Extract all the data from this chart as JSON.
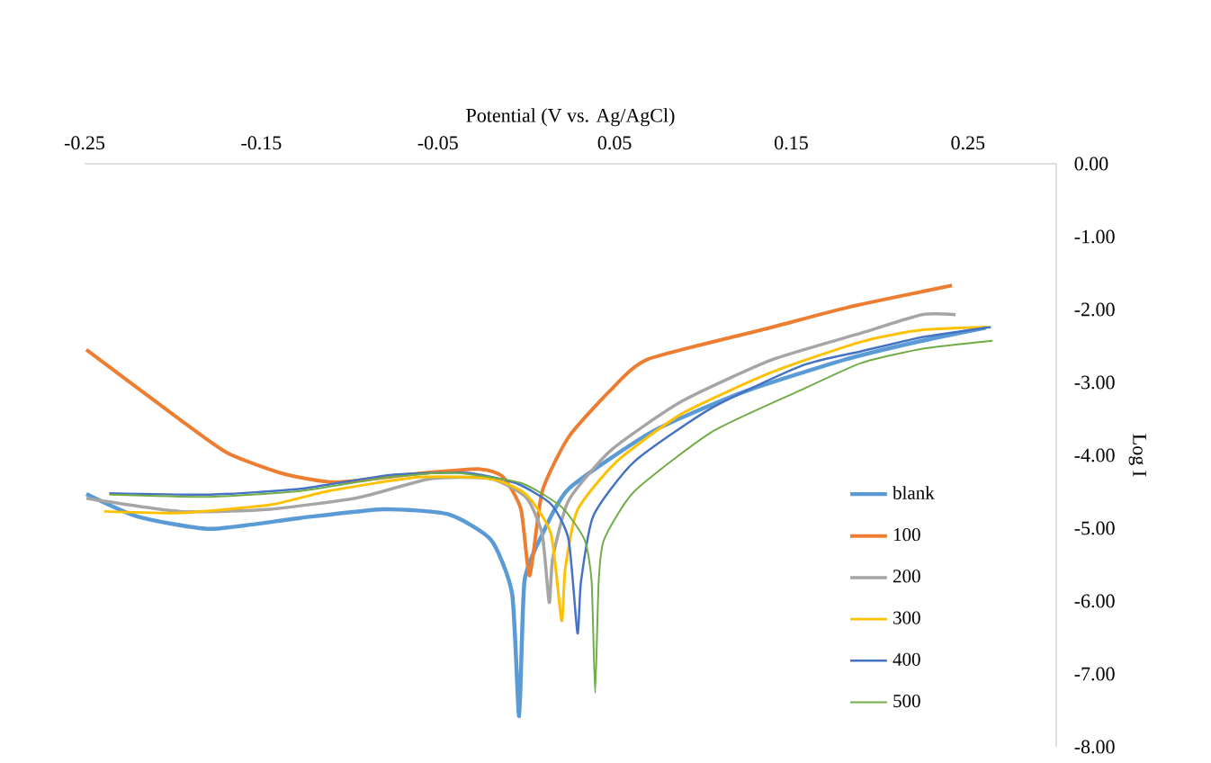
{
  "chart_data": {
    "type": "line",
    "xlabel": "Potential  (V vs. Ag/AgCl)",
    "ylabel": "Log I",
    "xlim": [
      -0.25,
      0.3
    ],
    "ylim": [
      -8,
      0
    ],
    "xticks": [
      -0.25,
      -0.15,
      -0.05,
      0.05,
      0.15,
      0.25
    ],
    "yticks": [
      {
        "value": 0,
        "label": "0.00"
      },
      {
        "value": -1,
        "label": "-1.00"
      },
      {
        "value": -2,
        "label": "-2.00"
      },
      {
        "value": -3,
        "label": "-3.00"
      },
      {
        "value": -4,
        "label": "-4.00"
      },
      {
        "value": -5,
        "label": "-5.00"
      },
      {
        "value": -6,
        "label": "-6.00"
      },
      {
        "value": -7,
        "label": "-7.00"
      },
      {
        "value": -8,
        "label": "-8.00"
      }
    ],
    "legend": "right",
    "grid": false,
    "marker": "none",
    "line_style": "solid",
    "series": [
      {
        "name": "blank",
        "color": "#5b9bd5",
        "x": [
          -0.249,
          -0.22,
          -0.179,
          -0.128,
          -0.081,
          -0.044,
          -0.02,
          -0.008,
          -0.004,
          -0.001,
          0.009,
          0.024,
          0.071,
          0.122,
          0.18,
          0.22,
          0.26
        ],
        "values": [
          -4.53,
          -4.84,
          -5.01,
          -4.86,
          -4.74,
          -4.81,
          -5.16,
          -5.9,
          -7.58,
          -5.73,
          -5.09,
          -4.46,
          -3.68,
          -3.14,
          -2.69,
          -2.45,
          -2.25
        ]
      },
      {
        "name": "100",
        "color": "#ed7d31",
        "x": [
          -0.249,
          -0.196,
          -0.169,
          -0.138,
          -0.108,
          -0.061,
          -0.026,
          -0.013,
          -0.003,
          0.002,
          0.009,
          0.024,
          0.048,
          0.069,
          0.138,
          0.182,
          0.241
        ],
        "values": [
          -2.55,
          -3.51,
          -3.97,
          -4.25,
          -4.37,
          -4.25,
          -4.19,
          -4.3,
          -4.74,
          -5.65,
          -4.5,
          -3.75,
          -3.1,
          -2.68,
          -2.25,
          -1.97,
          -1.67
        ]
      },
      {
        "name": "200",
        "color": "#a5a5a5",
        "x": [
          -0.249,
          -0.196,
          -0.145,
          -0.095,
          -0.054,
          -0.02,
          0.0,
          0.009,
          0.013,
          0.015,
          0.024,
          0.048,
          0.088,
          0.139,
          0.19,
          0.224,
          0.243
        ],
        "values": [
          -4.59,
          -4.77,
          -4.74,
          -4.58,
          -4.32,
          -4.32,
          -4.58,
          -5.08,
          -6.02,
          -5.41,
          -4.62,
          -3.93,
          -3.26,
          -2.69,
          -2.32,
          -2.07,
          -2.07
        ]
      },
      {
        "name": "300",
        "color": "#ffc000",
        "x": [
          -0.239,
          -0.196,
          -0.145,
          -0.112,
          -0.061,
          -0.02,
          0.0,
          0.014,
          0.02,
          0.022,
          0.029,
          0.051,
          0.088,
          0.139,
          0.19,
          0.224,
          0.261
        ],
        "values": [
          -4.77,
          -4.79,
          -4.68,
          -4.49,
          -4.3,
          -4.32,
          -4.54,
          -5.08,
          -6.27,
          -5.57,
          -4.75,
          -4.09,
          -3.43,
          -2.86,
          -2.44,
          -2.28,
          -2.24
        ]
      },
      {
        "name": "400",
        "color": "#4472c4",
        "x": [
          -0.236,
          -0.179,
          -0.128,
          -0.077,
          -0.034,
          -0.006,
          0.014,
          0.024,
          0.029,
          0.031,
          0.038,
          0.061,
          0.105,
          0.156,
          0.19,
          0.224,
          0.263
        ],
        "values": [
          -4.52,
          -4.54,
          -4.46,
          -4.27,
          -4.24,
          -4.38,
          -4.67,
          -5.16,
          -6.44,
          -5.73,
          -4.83,
          -4.09,
          -3.35,
          -2.77,
          -2.57,
          -2.38,
          -2.24
        ]
      },
      {
        "name": "500",
        "color": "#70ad47",
        "x": [
          -0.236,
          -0.179,
          -0.128,
          -0.077,
          -0.041,
          -0.003,
          0.02,
          0.033,
          0.037,
          0.039,
          0.041,
          0.044,
          0.061,
          0.105,
          0.156,
          0.19,
          0.224,
          0.264
        ],
        "values": [
          -4.54,
          -4.57,
          -4.49,
          -4.3,
          -4.24,
          -4.38,
          -4.71,
          -5.16,
          -5.73,
          -7.26,
          -5.73,
          -5.16,
          -4.5,
          -3.68,
          -3.1,
          -2.73,
          -2.54,
          -2.43
        ]
      }
    ]
  }
}
